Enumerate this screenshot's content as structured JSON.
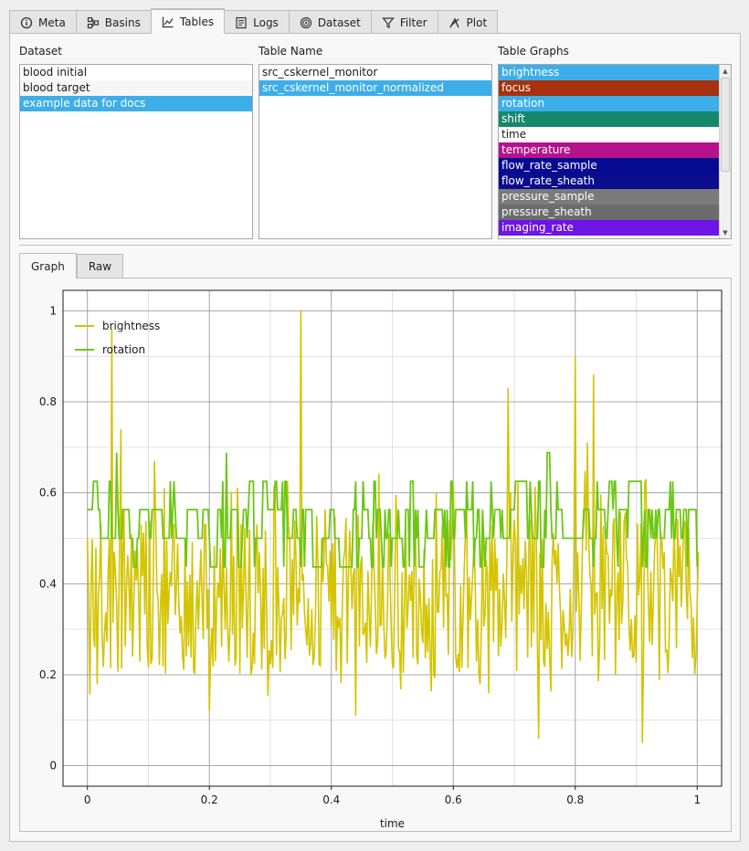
{
  "top_tabs": [
    {
      "label": "Meta",
      "icon": "info-icon",
      "active": false
    },
    {
      "label": "Basins",
      "icon": "basins-icon",
      "active": false
    },
    {
      "label": "Tables",
      "icon": "chart-line-icon",
      "active": true
    },
    {
      "label": "Logs",
      "icon": "logs-icon",
      "active": false
    },
    {
      "label": "Dataset",
      "icon": "dataset-icon",
      "active": false
    },
    {
      "label": "Filter",
      "icon": "filter-icon",
      "active": false
    },
    {
      "label": "Plot",
      "icon": "plot-icon",
      "active": false
    }
  ],
  "dataset": {
    "label": "Dataset",
    "items": [
      "blood initial",
      "blood target",
      "example data for docs"
    ],
    "selected_index": 2
  },
  "table_name": {
    "label": "Table Name",
    "items": [
      "src_cskernel_monitor",
      "src_cskernel_monitor_normalized"
    ],
    "selected_index": 1
  },
  "table_graphs": {
    "label": "Table Graphs",
    "items": [
      {
        "label": "brightness",
        "color": "#3daee9",
        "text": "#ffffff"
      },
      {
        "label": "focus",
        "color": "#a8310e",
        "text": "#ffffff"
      },
      {
        "label": "rotation",
        "color": "#3daee9",
        "text": "#ffffff"
      },
      {
        "label": "shift",
        "color": "#15886a",
        "text": "#ffffff"
      },
      {
        "label": "time",
        "color": "#ffffff",
        "text": "#1b1b1b"
      },
      {
        "label": "temperature",
        "color": "#b5128b",
        "text": "#ffffff"
      },
      {
        "label": "flow_rate_sample",
        "color": "#070a93",
        "text": "#ffffff"
      },
      {
        "label": "flow_rate_sheath",
        "color": "#0a0e8c",
        "text": "#ffffff"
      },
      {
        "label": "pressure_sample",
        "color": "#7a7a7a",
        "text": "#ffffff"
      },
      {
        "label": "pressure_sheath",
        "color": "#6c6c6c",
        "text": "#ffffff"
      },
      {
        "label": "imaging_rate",
        "color": "#6d14e6",
        "text": "#ffffff"
      }
    ]
  },
  "sub_tabs": [
    {
      "label": "Graph",
      "active": true
    },
    {
      "label": "Raw",
      "active": false
    }
  ],
  "chart_data": {
    "type": "line",
    "xlabel": "time",
    "ylabel": "",
    "xlim": [
      -0.04,
      1.04
    ],
    "ylim": [
      -0.045,
      1.045
    ],
    "x_ticks": [
      0,
      0.2,
      0.4,
      0.6,
      0.8,
      1
    ],
    "x_tick_labels": [
      "0",
      "0.2",
      "0.4",
      "0.6",
      "0.8",
      "1"
    ],
    "y_ticks": [
      0,
      0.2,
      0.4,
      0.6,
      0.8,
      1
    ],
    "y_tick_labels": [
      "0",
      "0.2",
      "0.4",
      "0.6",
      "0.8",
      "1"
    ],
    "grid": true,
    "legend_position": "top-left",
    "series": [
      {
        "name": "brightness",
        "color": "#d4c400",
        "samples": 500,
        "baseline_range": [
          0.2,
          0.55
        ],
        "peaks": [
          [
            0.0,
            0.5
          ],
          [
            0.04,
            0.96
          ],
          [
            0.055,
            0.74
          ],
          [
            0.11,
            0.67
          ],
          [
            0.2,
            0.12
          ],
          [
            0.35,
            1.0
          ],
          [
            0.44,
            0.11
          ],
          [
            0.69,
            0.83
          ],
          [
            0.74,
            0.06
          ],
          [
            0.8,
            0.9
          ],
          [
            0.82,
            0.71
          ],
          [
            0.83,
            0.86
          ],
          [
            0.91,
            0.05
          ],
          [
            1.0,
            0.0
          ],
          [
            1.002,
            0.47
          ]
        ]
      },
      {
        "name": "rotation",
        "color": "#6cc614",
        "samples": 500,
        "levels": [
          0.437,
          0.5,
          0.563,
          0.625,
          0.688
        ],
        "weights": [
          0.15,
          0.35,
          0.35,
          0.12,
          0.03
        ]
      }
    ]
  }
}
